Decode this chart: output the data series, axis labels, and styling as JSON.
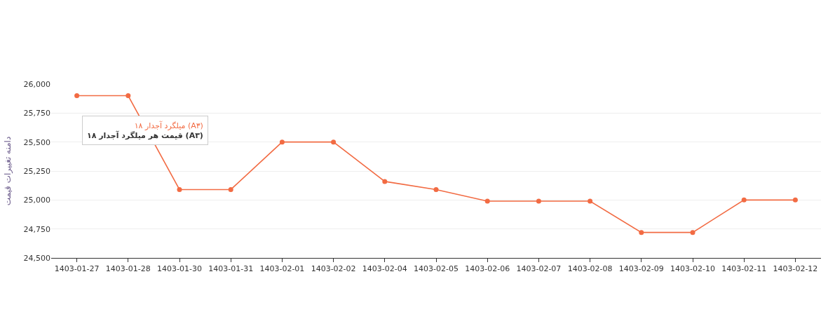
{
  "chart_data": {
    "type": "line",
    "ylabel": "دامنه تغییرات قیمت",
    "categories": [
      "1403-01-27",
      "1403-01-28",
      "1403-01-30",
      "1403-01-31",
      "1403-02-01",
      "1403-02-02",
      "1403-02-04",
      "1403-02-05",
      "1403-02-06",
      "1403-02-07",
      "1403-02-08",
      "1403-02-09",
      "1403-02-10",
      "1403-02-11",
      "1403-02-12"
    ],
    "series": [
      {
        "name": "میلگرد آجدار ۱۸ (A۳)",
        "color": "#f26b43",
        "values": [
          25900,
          25900,
          25090,
          25090,
          25500,
          25500,
          25160,
          25090,
          24990,
          24990,
          24990,
          24720,
          24720,
          25000,
          25000
        ]
      }
    ],
    "annotations": [
      "قیمت هر میلگرد آجدار ۱۸ (A۳)"
    ],
    "ylim": [
      24500,
      26000
    ],
    "yticks": [
      {
        "value": 24500,
        "label": "24,500"
      },
      {
        "value": 24750,
        "label": "24,750"
      },
      {
        "value": 25000,
        "label": "25,000"
      },
      {
        "value": 25250,
        "label": "25,250"
      },
      {
        "value": 25500,
        "label": "25,500"
      },
      {
        "value": 25750,
        "label": "25,750"
      },
      {
        "value": 26000,
        "label": "26,000"
      }
    ],
    "grid": "y",
    "marker": "circle",
    "line_style": "solid",
    "legend": false
  }
}
